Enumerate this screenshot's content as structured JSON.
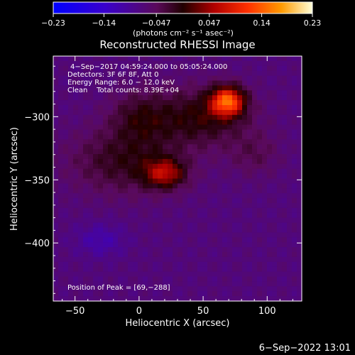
{
  "chart_data": {
    "type": "heatmap",
    "title": "Reconstructed RHESSI Image",
    "xlabel": "Heliocentric X (arcsec)",
    "ylabel": "Heliocentric Y (arcsec)",
    "xlim": [
      -67,
      127
    ],
    "ylim": [
      -446,
      -252
    ],
    "x_ticks": [
      -50,
      0,
      50,
      100
    ],
    "y_ticks": [
      -300,
      -350,
      -400
    ],
    "x_tick_labels": [
      "−50",
      "0",
      "50",
      "100"
    ],
    "y_tick_labels": [
      "−300",
      "−350",
      "−400"
    ],
    "colorbar": {
      "range": [
        -0.23,
        0.23
      ],
      "tick_values": [
        -0.23,
        -0.14,
        -0.047,
        0.047,
        0.14,
        0.23
      ],
      "tick_labels": [
        "−0.23",
        "−0.14",
        "−0.047",
        "0.047",
        "0.14",
        "0.23"
      ],
      "label": "(photons cm⁻² s⁻¹ asec⁻²)"
    },
    "peak": {
      "x": 69,
      "y": -288,
      "value": 0.23
    },
    "sources": [
      {
        "x": 69,
        "y": -288,
        "sx": 9,
        "sy": 8,
        "amp": 0.19
      },
      {
        "x": 48,
        "y": -300,
        "sx": 26,
        "sy": 16,
        "amp": 0.07
      },
      {
        "x": 20,
        "y": -345,
        "sx": 11,
        "sy": 8,
        "amp": 0.11
      },
      {
        "x": -10,
        "y": -335,
        "sx": 30,
        "sy": 18,
        "amp": 0.06
      },
      {
        "x": 0,
        "y": -300,
        "sx": 16,
        "sy": 14,
        "amp": 0.05
      },
      {
        "x": 90,
        "y": -330,
        "sx": 14,
        "sy": 12,
        "amp": 0.03
      }
    ]
  },
  "annotations": {
    "line1": "4−Sep−2017 04:59:24.000 to 05:05:24.000",
    "line2": "Detectors: 3F 6F 8F, Att 0",
    "line3": "Energy Range: 6.0 − 12.0 keV",
    "line4": "Clean    Total counts: 8.39E+04",
    "peak_text": "Position of Peak = [69,−288]"
  },
  "footer_date": "6−Sep−2022 13:01"
}
